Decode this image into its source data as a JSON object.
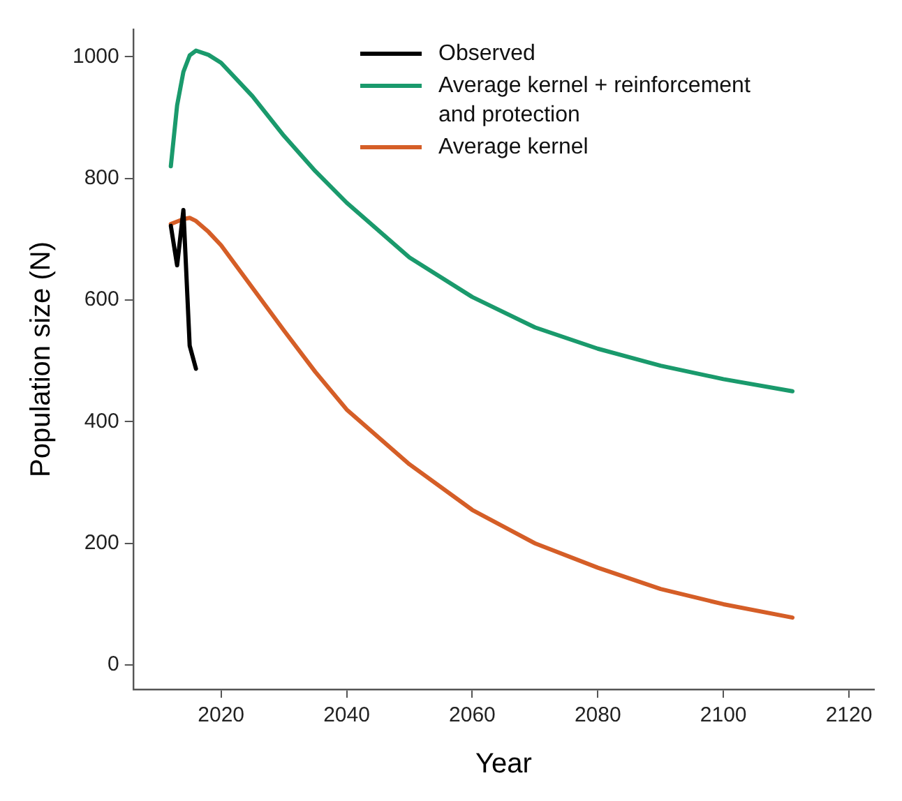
{
  "chart_data": {
    "type": "line",
    "xlabel": "Year",
    "ylabel": "Population size (N)",
    "xlim": [
      2006,
      2124
    ],
    "xticks": [
      2020,
      2040,
      2060,
      2080,
      2100,
      2120
    ],
    "ylim": [
      -40,
      1045
    ],
    "yticks": [
      0,
      200,
      400,
      600,
      800,
      1000
    ],
    "grid": false,
    "legend": "top right",
    "marker": "none",
    "line_style": "solid",
    "series": [
      {
        "name": "Observed",
        "color": "#000000",
        "x": [
          2012,
          2013,
          2014,
          2015,
          2016
        ],
        "values": [
          722,
          657,
          748,
          525,
          487
        ]
      },
      {
        "name": "Average kernel + reinforcement and protection",
        "color": "#1a9a6c",
        "x": [
          2012,
          2013,
          2014,
          2015,
          2016,
          2018,
          2020,
          2025,
          2030,
          2035,
          2040,
          2050,
          2060,
          2070,
          2080,
          2090,
          2100,
          2111
        ],
        "values": [
          820,
          920,
          975,
          1002,
          1010,
          1003,
          990,
          935,
          870,
          812,
          760,
          670,
          605,
          555,
          520,
          492,
          470,
          450
        ]
      },
      {
        "name": "Average kernel",
        "color": "#d55e27",
        "x": [
          2012,
          2014,
          2015,
          2016,
          2018,
          2020,
          2025,
          2030,
          2035,
          2040,
          2050,
          2060,
          2070,
          2080,
          2090,
          2100,
          2111
        ],
        "values": [
          725,
          733,
          735,
          730,
          712,
          690,
          620,
          550,
          482,
          420,
          330,
          255,
          200,
          160,
          125,
          100,
          78
        ]
      }
    ]
  }
}
